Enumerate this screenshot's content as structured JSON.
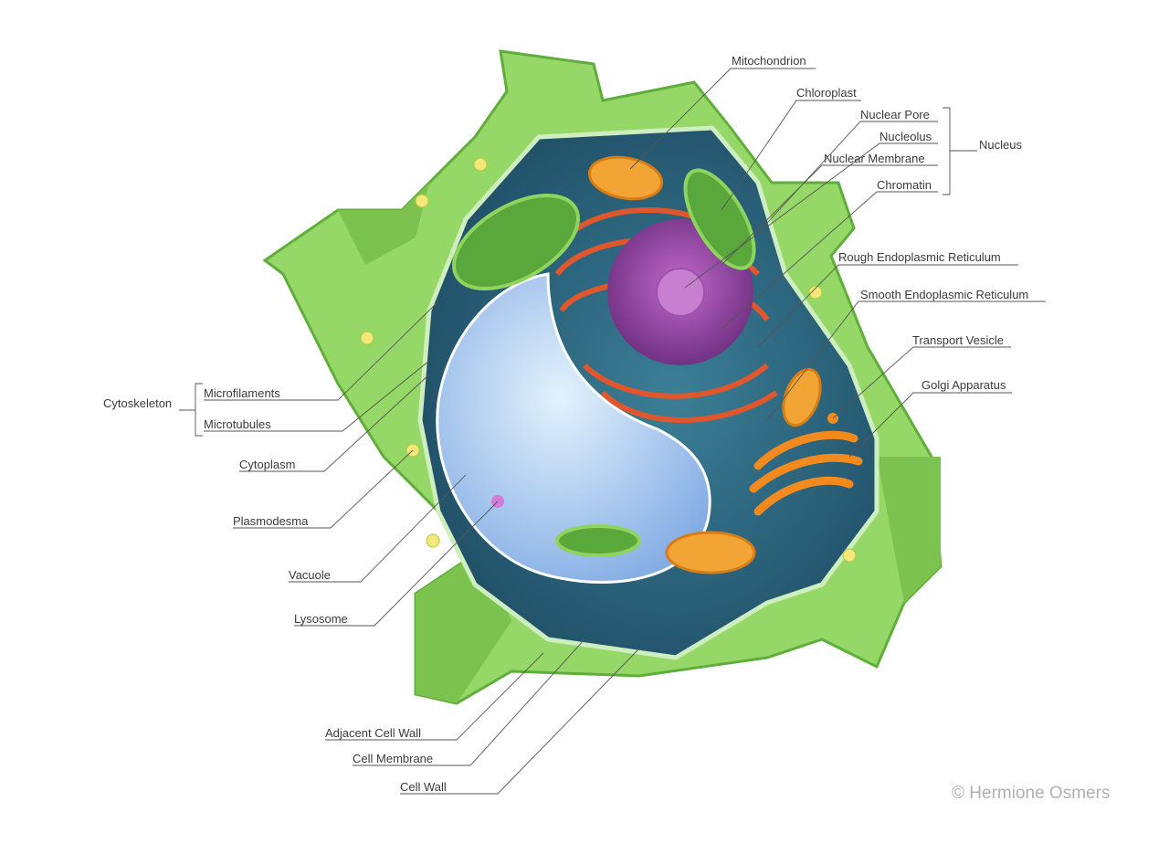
{
  "labels": {
    "mitochondrion": "Mitochondrion",
    "chloroplast": "Chloroplast",
    "nuclear_pore": "Nuclear Pore",
    "nucleolus": "Nucleolus",
    "nuclear_membrane": "Nuclear Membrane",
    "chromatin": "Chromatin",
    "nucleus": "Nucleus",
    "rough_er": "Rough Endoplasmic Reticulum",
    "smooth_er": "Smooth Endoplasmic Reticulum",
    "transport_vesicle": "Transport Vesicle",
    "golgi": "Golgi Apparatus",
    "cytoskeleton": "Cytoskeleton",
    "microfilaments": "Microfilaments",
    "microtubules": "Microtubules",
    "cytoplasm": "Cytoplasm",
    "plasmodesma": "Plasmodesma",
    "vacuole": "Vacuole",
    "lysosome": "Lysosome",
    "adjacent_cell_wall": "Adjacent Cell Wall",
    "cell_membrane": "Cell Membrane",
    "cell_wall": "Cell Wall"
  },
  "copyright": "© Hermione Osmers",
  "colors": {
    "cell_wall": "#8fd45f",
    "cell_wall_dark": "#5fae3c",
    "cytoplasm": "#2f6f86",
    "vacuole": "#bfe1f5",
    "nucleus": "#8a3f9b",
    "er": "#e0572e",
    "golgi": "#f28a1e",
    "chloroplast": "#6cbf4a",
    "mitochondrion": "#f2a534",
    "leader_line": "#555555"
  }
}
